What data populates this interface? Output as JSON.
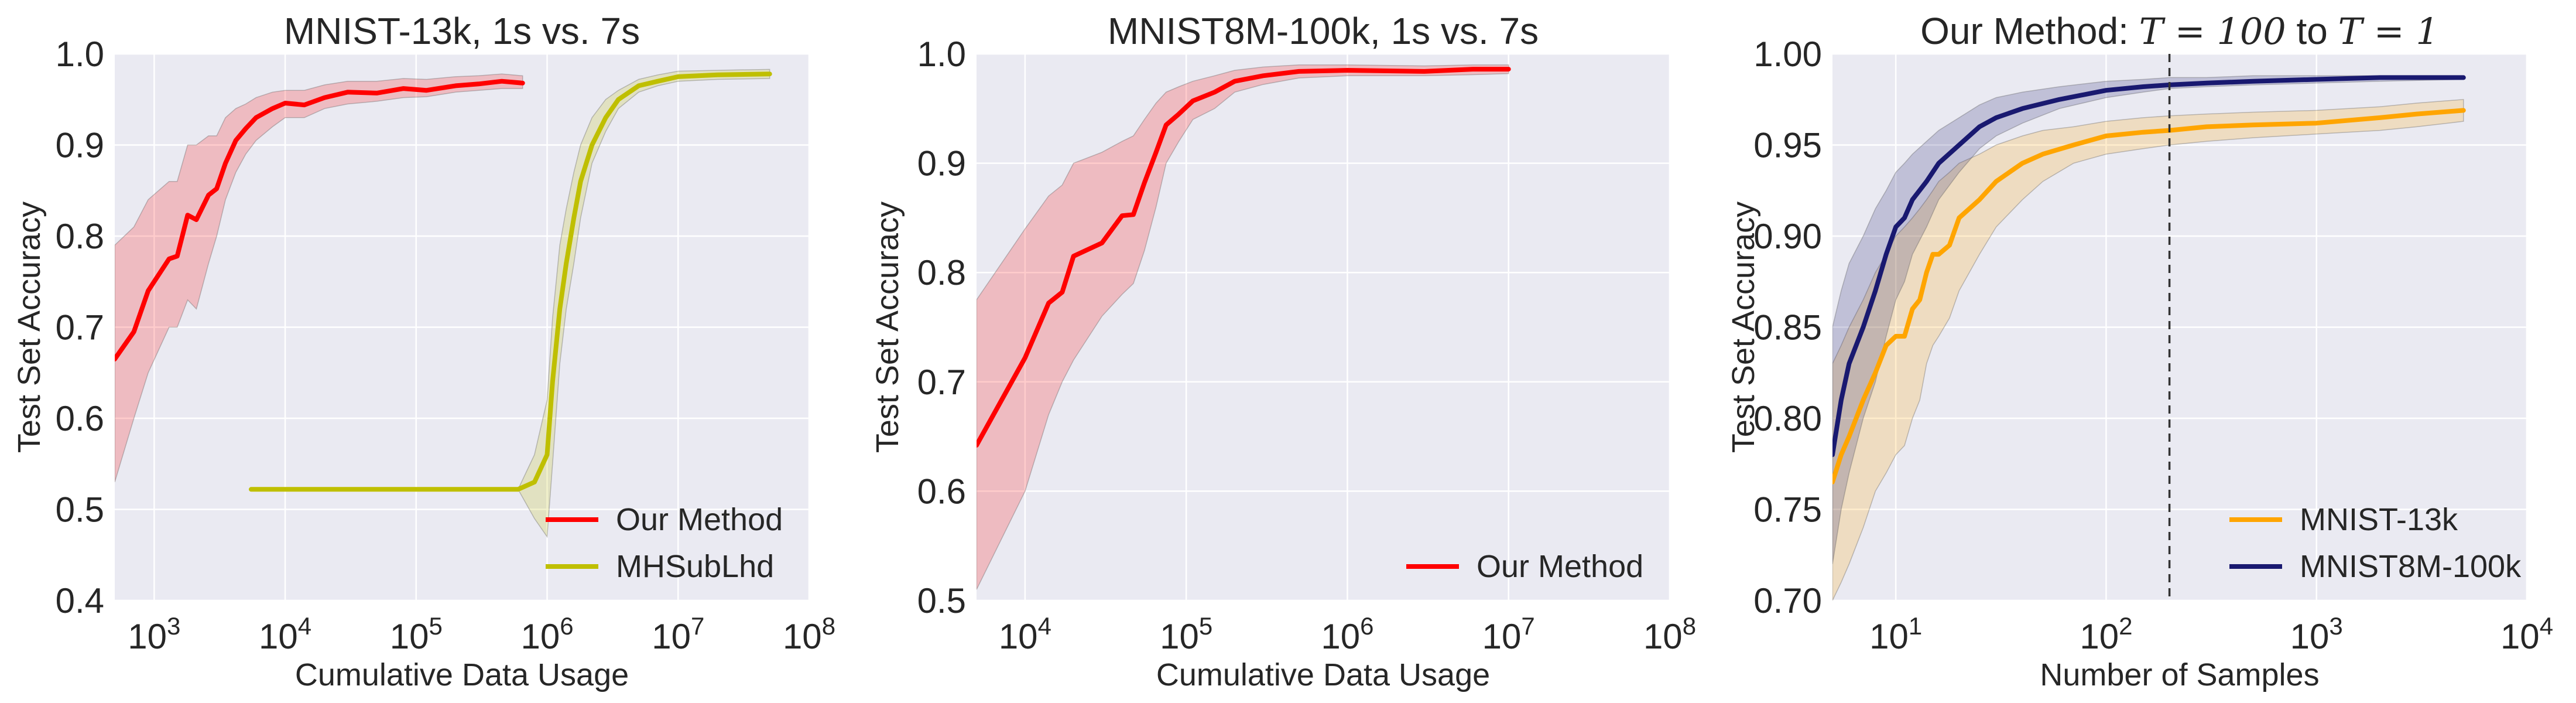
{
  "chart_data": [
    {
      "type": "line",
      "title": "MNIST-13k, 1s vs. 7s",
      "xlabel": "Cumulative Data Usage",
      "ylabel": "Test Set Accuracy",
      "xscale": "log",
      "xlim": [
        500,
        100000000
      ],
      "ylim": [
        0.4,
        1.0
      ],
      "xticks": [
        {
          "v": 1000,
          "e": "3"
        },
        {
          "v": 10000,
          "e": "4"
        },
        {
          "v": 100000,
          "e": "5"
        },
        {
          "v": 1000000,
          "e": "6"
        },
        {
          "v": 10000000,
          "e": "7"
        },
        {
          "v": 100000000,
          "e": "8"
        }
      ],
      "yticks": [
        0.4,
        0.5,
        0.6,
        0.7,
        0.8,
        0.9,
        1.0
      ],
      "ytick_labels": [
        "0.4",
        "0.5",
        "0.6",
        "0.7",
        "0.8",
        "0.9",
        "1.0"
      ],
      "grid": true,
      "legend_position": "lower-right",
      "series": [
        {
          "name": "Our Method",
          "color": "#ff0000",
          "x": [
            500,
            700,
            900,
            1300,
            1500,
            1800,
            2100,
            2600,
            3000,
            3500,
            4200,
            5000,
            6000,
            8000,
            10000,
            14000,
            20000,
            30000,
            50000,
            80000,
            120000,
            200000,
            300000,
            450000,
            650000
          ],
          "y": [
            0.665,
            0.695,
            0.74,
            0.775,
            0.778,
            0.823,
            0.818,
            0.845,
            0.852,
            0.88,
            0.905,
            0.918,
            0.93,
            0.94,
            0.946,
            0.944,
            0.952,
            0.958,
            0.957,
            0.962,
            0.96,
            0.965,
            0.967,
            0.97,
            0.968
          ],
          "lower": [
            0.53,
            0.6,
            0.65,
            0.7,
            0.7,
            0.73,
            0.72,
            0.77,
            0.8,
            0.84,
            0.87,
            0.89,
            0.905,
            0.92,
            0.93,
            0.93,
            0.94,
            0.945,
            0.948,
            0.952,
            0.953,
            0.958,
            0.96,
            0.962,
            0.962
          ],
          "upper": [
            0.79,
            0.81,
            0.84,
            0.86,
            0.86,
            0.9,
            0.9,
            0.91,
            0.91,
            0.93,
            0.94,
            0.945,
            0.952,
            0.958,
            0.96,
            0.96,
            0.966,
            0.97,
            0.97,
            0.973,
            0.972,
            0.975,
            0.976,
            0.978,
            0.976
          ]
        },
        {
          "name": "MHSubLhd",
          "color": "#bfbf00",
          "x": [
            5500,
            10000,
            50000,
            200000,
            600000,
            800000,
            1000000,
            1100000,
            1250000,
            1400000,
            1600000,
            1800000,
            2200000,
            2800000,
            3500000,
            5000000,
            7000000,
            10000000,
            20000000,
            50000000
          ],
          "y": [
            0.522,
            0.522,
            0.522,
            0.522,
            0.522,
            0.53,
            0.56,
            0.64,
            0.72,
            0.77,
            0.82,
            0.86,
            0.9,
            0.93,
            0.95,
            0.965,
            0.97,
            0.975,
            0.977,
            0.978
          ],
          "lower": [
            0.522,
            0.522,
            0.522,
            0.522,
            0.522,
            0.49,
            0.47,
            0.55,
            0.66,
            0.72,
            0.77,
            0.82,
            0.88,
            0.915,
            0.94,
            0.958,
            0.965,
            0.97,
            0.972,
            0.973
          ],
          "upper": [
            0.522,
            0.522,
            0.522,
            0.522,
            0.522,
            0.56,
            0.62,
            0.71,
            0.79,
            0.83,
            0.87,
            0.9,
            0.93,
            0.95,
            0.96,
            0.972,
            0.977,
            0.981,
            0.982,
            0.983
          ]
        }
      ]
    },
    {
      "type": "line",
      "title": "MNIST8M-100k, 1s vs. 7s",
      "xlabel": "Cumulative Data Usage",
      "ylabel": "Test Set Accuracy",
      "xscale": "log",
      "xlim": [
        5000,
        100000000
      ],
      "ylim": [
        0.5,
        1.0
      ],
      "xticks": [
        {
          "v": 10000,
          "e": "4"
        },
        {
          "v": 100000,
          "e": "5"
        },
        {
          "v": 1000000,
          "e": "6"
        },
        {
          "v": 10000000,
          "e": "7"
        },
        {
          "v": 100000000,
          "e": "8"
        }
      ],
      "yticks": [
        0.5,
        0.6,
        0.7,
        0.8,
        0.9,
        1.0
      ],
      "ytick_labels": [
        "0.5",
        "0.6",
        "0.7",
        "0.8",
        "0.9",
        "1.0"
      ],
      "grid": true,
      "legend_position": "lower-right",
      "series": [
        {
          "name": "Our Method",
          "color": "#ff0000",
          "x": [
            5000,
            10000,
            14000,
            17000,
            20000,
            30000,
            40000,
            47000,
            55000,
            65000,
            75000,
            90000,
            110000,
            150000,
            200000,
            300000,
            500000,
            1000000,
            3000000,
            6000000,
            10000000
          ],
          "y": [
            0.642,
            0.722,
            0.772,
            0.782,
            0.815,
            0.827,
            0.852,
            0.853,
            0.882,
            0.91,
            0.935,
            0.945,
            0.957,
            0.965,
            0.975,
            0.98,
            0.984,
            0.985,
            0.984,
            0.986,
            0.986
          ],
          "lower": [
            0.51,
            0.6,
            0.67,
            0.7,
            0.72,
            0.76,
            0.78,
            0.79,
            0.82,
            0.86,
            0.9,
            0.92,
            0.94,
            0.95,
            0.965,
            0.972,
            0.978,
            0.98,
            0.98,
            0.981,
            0.982
          ],
          "upper": [
            0.775,
            0.84,
            0.87,
            0.88,
            0.9,
            0.91,
            0.92,
            0.925,
            0.94,
            0.955,
            0.965,
            0.97,
            0.975,
            0.98,
            0.985,
            0.988,
            0.99,
            0.99,
            0.989,
            0.99,
            0.99
          ]
        }
      ]
    },
    {
      "type": "line",
      "title_text": "Our Method: ",
      "title_math_1": "T = 100",
      "title_mid": " to ",
      "title_math_2": "T = 1",
      "xlabel": "Number of Samples",
      "ylabel": "Test Set Accuracy",
      "xscale": "log",
      "xlim": [
        5,
        10000
      ],
      "ylim": [
        0.7,
        1.0
      ],
      "xticks": [
        {
          "v": 10,
          "e": "1"
        },
        {
          "v": 100,
          "e": "2"
        },
        {
          "v": 1000,
          "e": "3"
        },
        {
          "v": 10000,
          "e": "4"
        }
      ],
      "yticks": [
        0.7,
        0.75,
        0.8,
        0.85,
        0.9,
        0.95,
        1.0
      ],
      "ytick_labels": [
        "0.70",
        "0.75",
        "0.80",
        "0.85",
        "0.90",
        "0.95",
        "1.00"
      ],
      "vline": 200,
      "grid": true,
      "legend_position": "lower-right",
      "series": [
        {
          "name": "MNIST-13k",
          "color": "#ffa500",
          "x": [
            5,
            5.5,
            6,
            7,
            8,
            9,
            10,
            11,
            12,
            13,
            14,
            15,
            16,
            18,
            20,
            25,
            30,
            40,
            50,
            70,
            100,
            150,
            200,
            300,
            500,
            1000,
            2000,
            3000,
            5000
          ],
          "y": [
            0.765,
            0.78,
            0.79,
            0.81,
            0.825,
            0.84,
            0.845,
            0.845,
            0.86,
            0.865,
            0.88,
            0.89,
            0.89,
            0.895,
            0.91,
            0.92,
            0.93,
            0.94,
            0.945,
            0.95,
            0.955,
            0.957,
            0.958,
            0.96,
            0.961,
            0.962,
            0.965,
            0.967,
            0.969
          ],
          "lower": [
            0.7,
            0.71,
            0.72,
            0.74,
            0.76,
            0.77,
            0.78,
            0.785,
            0.8,
            0.81,
            0.83,
            0.84,
            0.845,
            0.855,
            0.87,
            0.89,
            0.905,
            0.92,
            0.93,
            0.94,
            0.945,
            0.948,
            0.95,
            0.952,
            0.954,
            0.956,
            0.958,
            0.96,
            0.963
          ],
          "upper": [
            0.83,
            0.84,
            0.85,
            0.865,
            0.88,
            0.89,
            0.9,
            0.905,
            0.91,
            0.915,
            0.92,
            0.925,
            0.93,
            0.935,
            0.94,
            0.945,
            0.95,
            0.955,
            0.958,
            0.96,
            0.963,
            0.965,
            0.966,
            0.967,
            0.968,
            0.969,
            0.971,
            0.973,
            0.975
          ]
        },
        {
          "name": "MNIST8M-100k",
          "color": "#191970",
          "x": [
            5,
            5.5,
            6,
            7,
            8,
            9,
            10,
            11,
            12,
            14,
            16,
            20,
            25,
            30,
            40,
            60,
            100,
            150,
            200,
            300,
            500,
            1000,
            2000,
            5000
          ],
          "y": [
            0.78,
            0.81,
            0.83,
            0.85,
            0.87,
            0.89,
            0.905,
            0.91,
            0.92,
            0.93,
            0.94,
            0.95,
            0.96,
            0.965,
            0.97,
            0.975,
            0.98,
            0.982,
            0.983,
            0.984,
            0.985,
            0.986,
            0.987,
            0.987
          ],
          "lower": [
            0.72,
            0.75,
            0.77,
            0.8,
            0.82,
            0.845,
            0.865,
            0.875,
            0.89,
            0.905,
            0.92,
            0.935,
            0.948,
            0.955,
            0.962,
            0.97,
            0.976,
            0.979,
            0.981,
            0.982,
            0.983,
            0.984,
            0.985,
            0.986
          ],
          "upper": [
            0.85,
            0.87,
            0.885,
            0.9,
            0.915,
            0.925,
            0.935,
            0.94,
            0.945,
            0.952,
            0.958,
            0.965,
            0.972,
            0.976,
            0.979,
            0.982,
            0.985,
            0.986,
            0.987,
            0.987,
            0.988,
            0.988,
            0.988,
            0.988
          ]
        }
      ]
    }
  ]
}
